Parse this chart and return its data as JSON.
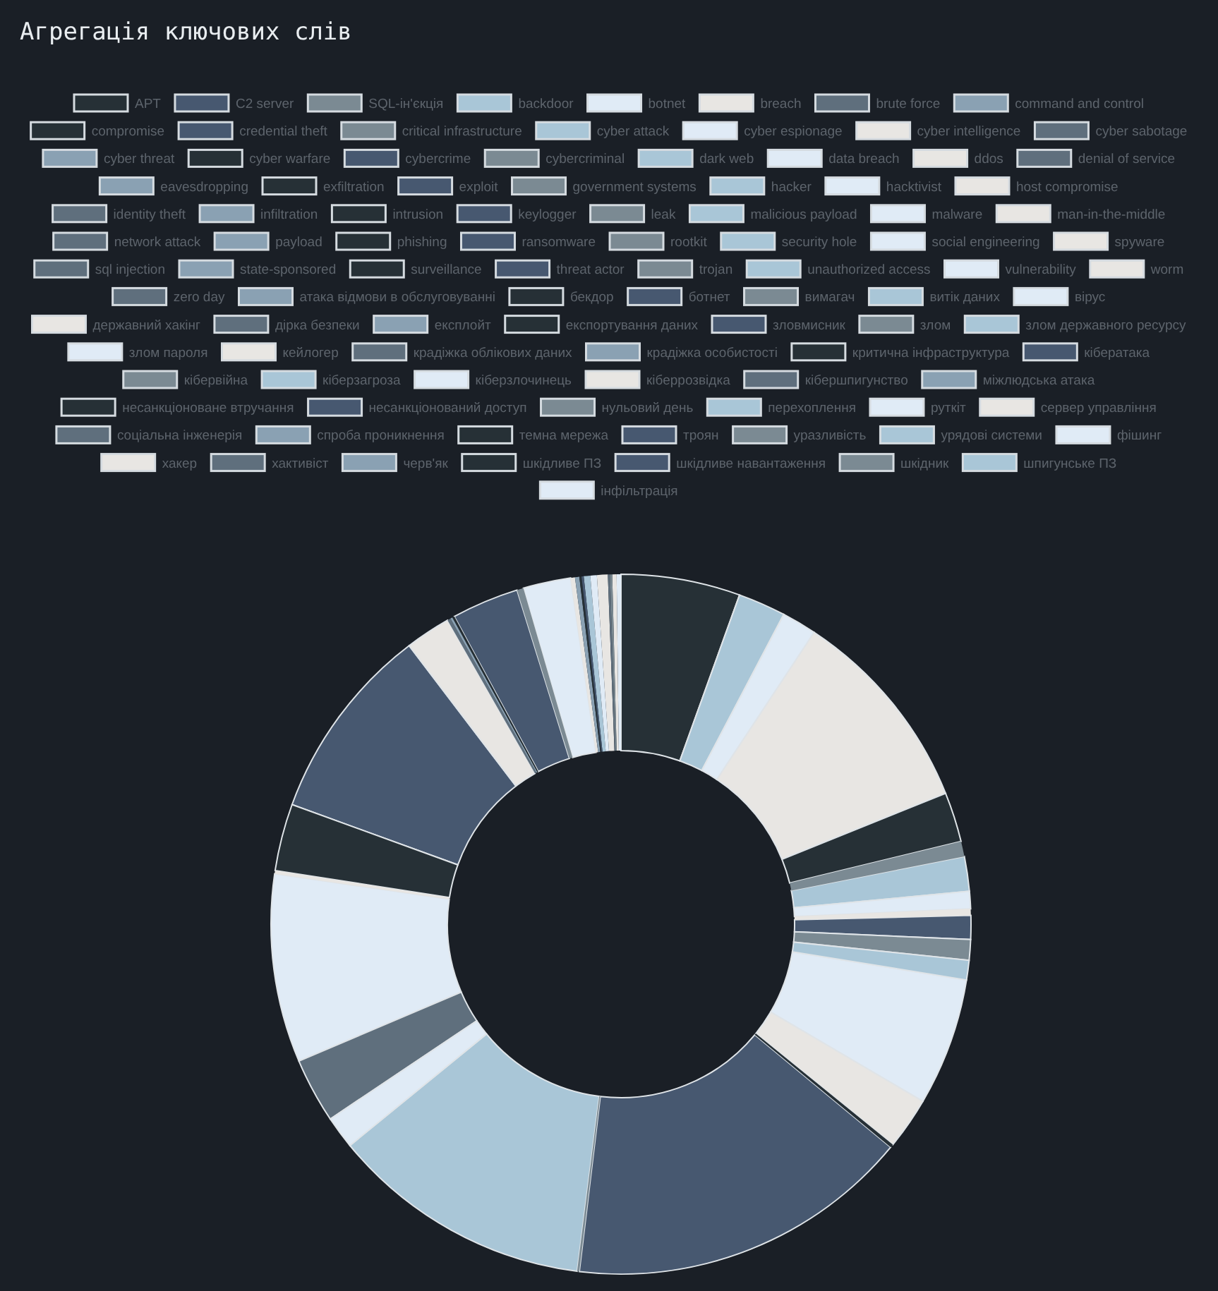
{
  "chart_data": {
    "type": "donut",
    "title": "Агрегація ключових слів",
    "legend": "top",
    "categories": [
      "APT",
      "C2 server",
      "SQL-ін'єкція",
      "backdoor",
      "botnet",
      "breach",
      "brute force",
      "command and control",
      "compromise",
      "credential theft",
      "critical infrastructure",
      "cyber attack",
      "cyber espionage",
      "cyber intelligence",
      "cyber sabotage",
      "cyber threat",
      "cyber warfare",
      "cybercrime",
      "cybercriminal",
      "dark web",
      "data breach",
      "ddos",
      "denial of service",
      "eavesdropping",
      "exfiltration",
      "exploit",
      "government systems",
      "hacker",
      "hacktivist",
      "host compromise",
      "identity theft",
      "infiltration",
      "intrusion",
      "keylogger",
      "leak",
      "malicious payload",
      "malware",
      "man-in-the-middle",
      "network attack",
      "payload",
      "phishing",
      "ransomware",
      "rootkit",
      "security hole",
      "social engineering",
      "spyware",
      "sql injection",
      "state-sponsored",
      "surveillance",
      "threat actor",
      "trojan",
      "unauthorized access",
      "vulnerability",
      "worm",
      "zero day",
      "атака відмови в обслуговуванні",
      "бекдор",
      "ботнет",
      "вимагач",
      "витік даних",
      "вірус",
      "державний хакінг",
      "дірка безпеки",
      "експлойт",
      "експортування даних",
      "зловмисник",
      "злом",
      "злом державного ресурсу",
      "злом пароля",
      "кейлогер",
      "крадіжка облікових даних",
      "крадіжка особистості",
      "критична інфраструктура",
      "кібератака",
      "кібервійна",
      "кіберзагроза",
      "кіберзлочинець",
      "кіберрозвідка",
      "кібершпигунство",
      "міжлюдська атака",
      "несанкціоноване втручання",
      "несанкціонований доступ",
      "нульовий день",
      "перехоплення",
      "руткіт",
      "сервер управління",
      "соціальна інженерія",
      "спроба проникнення",
      "темна мережа",
      "троян",
      "уразливість",
      "урядові системи",
      "фішинг",
      "хакер",
      "хактивіст",
      "черв'як",
      "шкідливе ПЗ",
      "шкідливе навантаження",
      "шкідник",
      "шпигунське ПЗ",
      "інфільтрація"
    ],
    "values": [
      5.5,
      0,
      0,
      2.2,
      1.6,
      9.6,
      0,
      0,
      2.3,
      0,
      0.7,
      1.6,
      0.8,
      0.3,
      0,
      0,
      0,
      1.1,
      0.95,
      0.9,
      5.9,
      2.4,
      0,
      0,
      0.15,
      15.9,
      0.1,
      12.1,
      1.5,
      0,
      3.0,
      0,
      0,
      0,
      0,
      0,
      8.7,
      0.15,
      0,
      0,
      3.1,
      9.1,
      0,
      0,
      0,
      2.1,
      0.15,
      0.1,
      0.1,
      3.1,
      0.3,
      0,
      2.2,
      0.2,
      0,
      0.2,
      0.1,
      0.1,
      0,
      0.3,
      0.3,
      0.5,
      0.1,
      0,
      0,
      0,
      0.1,
      0,
      0,
      0.2,
      0,
      0,
      0,
      0,
      0,
      0,
      0,
      0,
      0,
      0,
      0,
      0,
      0,
      0,
      0,
      0,
      0,
      0,
      0,
      0,
      0,
      0,
      0.2,
      0,
      0,
      0,
      0,
      0,
      0,
      0,
      0
    ],
    "colors": [
      "#263036",
      "#475870",
      "#7b8a93",
      "#a9c6d7",
      "#e0ebf6",
      "#e8e6e3",
      "#5f6f7d",
      "#8aa1b3",
      "#263036",
      "#475870",
      "#7b8a93",
      "#a9c6d7",
      "#e0ebf6",
      "#e8e6e3",
      "#5f6f7d",
      "#8aa1b3",
      "#263036",
      "#475870",
      "#7b8a93",
      "#a9c6d7",
      "#e0ebf6",
      "#e8e6e3",
      "#5f6f7d",
      "#8aa1b3",
      "#263036",
      "#475870",
      "#7b8a93",
      "#a9c6d7",
      "#e0ebf6",
      "#e8e6e3",
      "#5f6f7d",
      "#8aa1b3",
      "#263036",
      "#475870",
      "#7b8a93",
      "#a9c6d7",
      "#e0ebf6",
      "#e8e6e3",
      "#5f6f7d",
      "#8aa1b3",
      "#263036",
      "#475870",
      "#7b8a93",
      "#a9c6d7",
      "#e0ebf6",
      "#e8e6e3",
      "#5f6f7d",
      "#8aa1b3",
      "#263036",
      "#475870",
      "#7b8a93",
      "#a9c6d7",
      "#e0ebf6",
      "#e8e6e3",
      "#5f6f7d",
      "#8aa1b3",
      "#263036",
      "#475870",
      "#7b8a93",
      "#a9c6d7",
      "#e0ebf6",
      "#e8e6e3",
      "#5f6f7d",
      "#8aa1b3",
      "#263036",
      "#475870",
      "#7b8a93",
      "#a9c6d7",
      "#e0ebf6",
      "#e8e6e3",
      "#5f6f7d",
      "#8aa1b3",
      "#263036",
      "#475870",
      "#7b8a93",
      "#a9c6d7",
      "#e0ebf6",
      "#e8e6e3",
      "#5f6f7d",
      "#8aa1b3",
      "#263036",
      "#475870",
      "#7b8a93",
      "#a9c6d7",
      "#e0ebf6",
      "#e8e6e3",
      "#5f6f7d",
      "#8aa1b3",
      "#263036",
      "#475870",
      "#7b8a93",
      "#a9c6d7",
      "#e0ebf6",
      "#e8e6e3",
      "#5f6f7d",
      "#8aa1b3",
      "#263036",
      "#475870",
      "#7b8a93",
      "#a9c6d7",
      "#e0ebf6"
    ]
  }
}
